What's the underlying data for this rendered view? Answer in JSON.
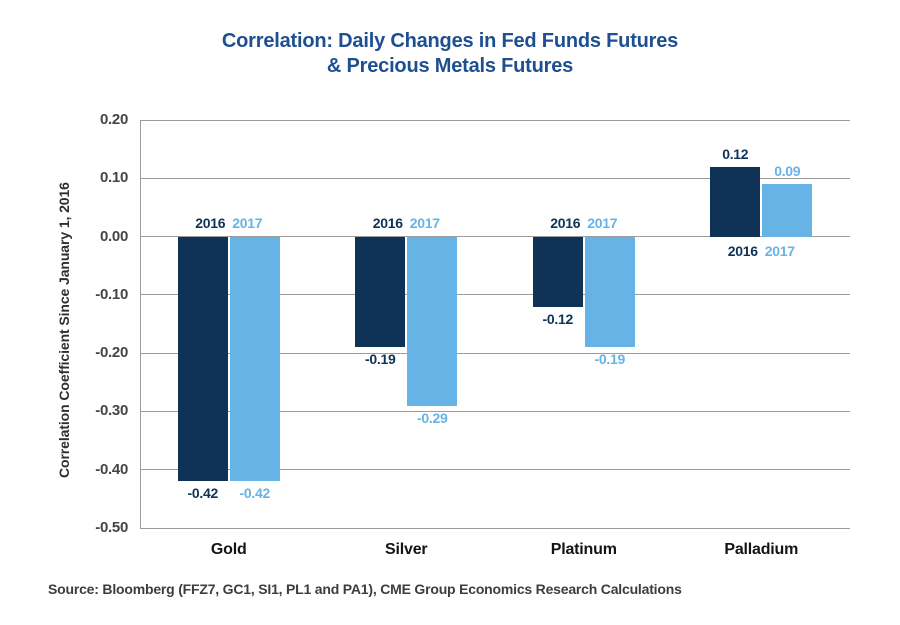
{
  "page": {
    "title_line1": "Correlation: Daily Changes in Fed Funds Futures",
    "title_line2": "& Precious Metals Futures",
    "source": "Source: Bloomberg (FFZ7, GC1, SI1, PL1 and PA1), CME Group Economics Research Calculations"
  },
  "chart_data": {
    "type": "bar",
    "title": "Correlation: Daily Changes in Fed Funds Futures & Precious Metals Futures",
    "xlabel": "",
    "ylabel": "Correlation Coefficient Since January 1, 2016",
    "categories": [
      "Gold",
      "Silver",
      "Platinum",
      "Palladium"
    ],
    "series": [
      {
        "name": "2016",
        "color": "#0e3356",
        "values": [
          -0.42,
          -0.19,
          -0.12,
          0.12
        ],
        "labels": [
          "-0.42",
          "-0.19",
          "-0.12",
          "0.12"
        ]
      },
      {
        "name": "2017",
        "color": "#66b4e6",
        "values": [
          -0.42,
          -0.29,
          -0.19,
          0.09
        ],
        "labels": [
          "-0.42",
          "-0.29",
          "-0.19",
          "0.09"
        ]
      }
    ],
    "ylim": [
      -0.5,
      0.2
    ],
    "yticks": [
      "0.20",
      "0.10",
      "0.00",
      "-0.10",
      "-0.20",
      "-0.30",
      "-0.40",
      "-0.50"
    ],
    "grid": true,
    "legend_position": "inline-at-zero-line-per-group"
  },
  "colors": {
    "title": "#1d4f91",
    "gridline": "#9c9c9c",
    "axis_line": "#9c9c9c",
    "tick_label": "#454545",
    "category_label": "#141414",
    "source_text": "#3d3d3d",
    "background": "#ffffff"
  }
}
